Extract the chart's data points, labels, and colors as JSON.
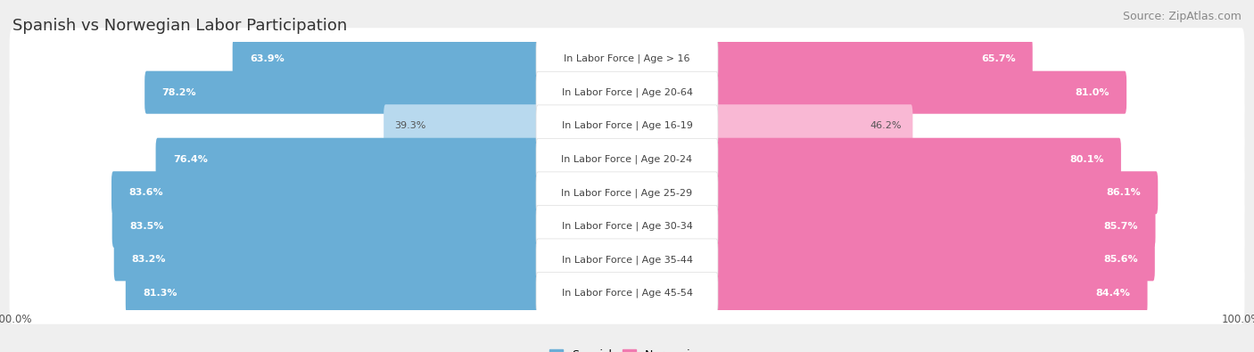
{
  "title": "Spanish vs Norwegian Labor Participation",
  "source": "Source: ZipAtlas.com",
  "categories": [
    "In Labor Force | Age > 16",
    "In Labor Force | Age 20-64",
    "In Labor Force | Age 16-19",
    "In Labor Force | Age 20-24",
    "In Labor Force | Age 25-29",
    "In Labor Force | Age 30-34",
    "In Labor Force | Age 35-44",
    "In Labor Force | Age 45-54"
  ],
  "spanish_values": [
    63.9,
    78.2,
    39.3,
    76.4,
    83.6,
    83.5,
    83.2,
    81.3
  ],
  "norwegian_values": [
    65.7,
    81.0,
    46.2,
    80.1,
    86.1,
    85.7,
    85.6,
    84.4
  ],
  "spanish_color": "#6aaed6",
  "norwegian_color": "#f07ab0",
  "spanish_light_color": "#b8d9ee",
  "norwegian_light_color": "#f9b8d4",
  "bg_color": "#efefef",
  "row_bg_color": "#ffffff",
  "max_value": 100.0,
  "label_fontsize": 8.0,
  "title_fontsize": 13,
  "source_fontsize": 9,
  "legend_fontsize": 9,
  "value_fontsize": 8.0
}
